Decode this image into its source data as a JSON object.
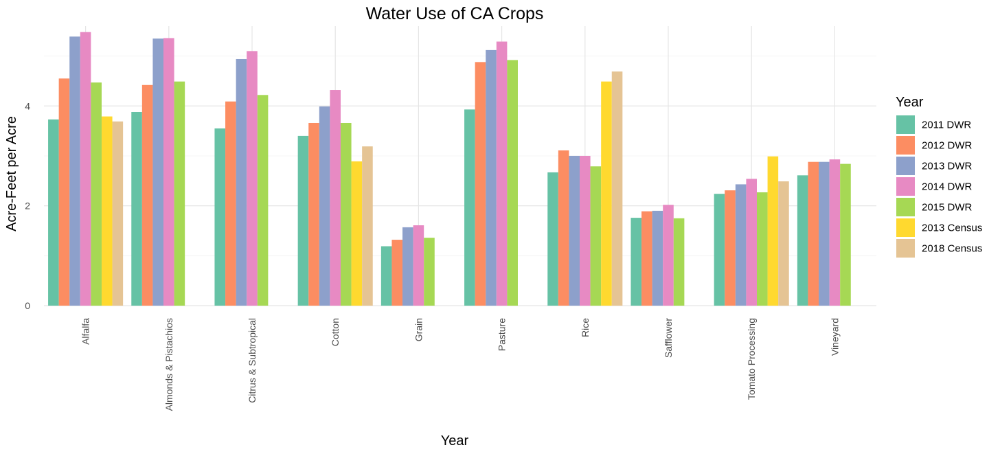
{
  "chart_data": {
    "type": "bar",
    "title": "Water Use of CA Crops",
    "xlabel": "Year",
    "ylabel": "Acre-Feet per Acre",
    "ylim": [
      0,
      5.6
    ],
    "y_ticks": [
      0,
      2,
      4
    ],
    "grid": true,
    "legend_title": "Year",
    "legend_position": "right",
    "categories": [
      "Alfalfa",
      "Almonds & Pistachios",
      "Citrus & Subtropical",
      "Cotton",
      "Grain",
      "Pasture",
      "Rice",
      "Safflower",
      "Tomato Processing",
      "Vineyard"
    ],
    "series": [
      {
        "name": "2011 DWR",
        "color": "#66c2a5",
        "values": [
          3.73,
          3.88,
          3.55,
          3.4,
          1.19,
          3.93,
          2.67,
          1.76,
          2.24,
          2.61
        ]
      },
      {
        "name": "2012 DWR",
        "color": "#fc8d62",
        "values": [
          4.55,
          4.42,
          4.09,
          3.66,
          1.32,
          4.88,
          3.11,
          1.89,
          2.31,
          2.88
        ]
      },
      {
        "name": "2013 DWR",
        "color": "#8da0cb",
        "values": [
          5.39,
          5.35,
          4.94,
          3.99,
          1.57,
          5.12,
          3.0,
          1.9,
          2.43,
          2.88
        ]
      },
      {
        "name": "2014 DWR",
        "color": "#e78ac3",
        "values": [
          5.48,
          5.36,
          5.1,
          4.32,
          1.61,
          5.29,
          3.0,
          2.02,
          2.54,
          2.93
        ]
      },
      {
        "name": "2015 DWR",
        "color": "#a6d854",
        "values": [
          4.47,
          4.49,
          4.22,
          3.66,
          1.36,
          4.92,
          2.79,
          1.75,
          2.27,
          2.84
        ]
      },
      {
        "name": "2013 Census",
        "color": "#ffd92f",
        "values": [
          3.79,
          null,
          null,
          2.89,
          null,
          null,
          4.49,
          null,
          2.99,
          null
        ]
      },
      {
        "name": "2018 Census",
        "color": "#e5c494",
        "values": [
          3.69,
          null,
          null,
          3.19,
          null,
          null,
          4.69,
          null,
          2.49,
          null
        ]
      }
    ]
  }
}
